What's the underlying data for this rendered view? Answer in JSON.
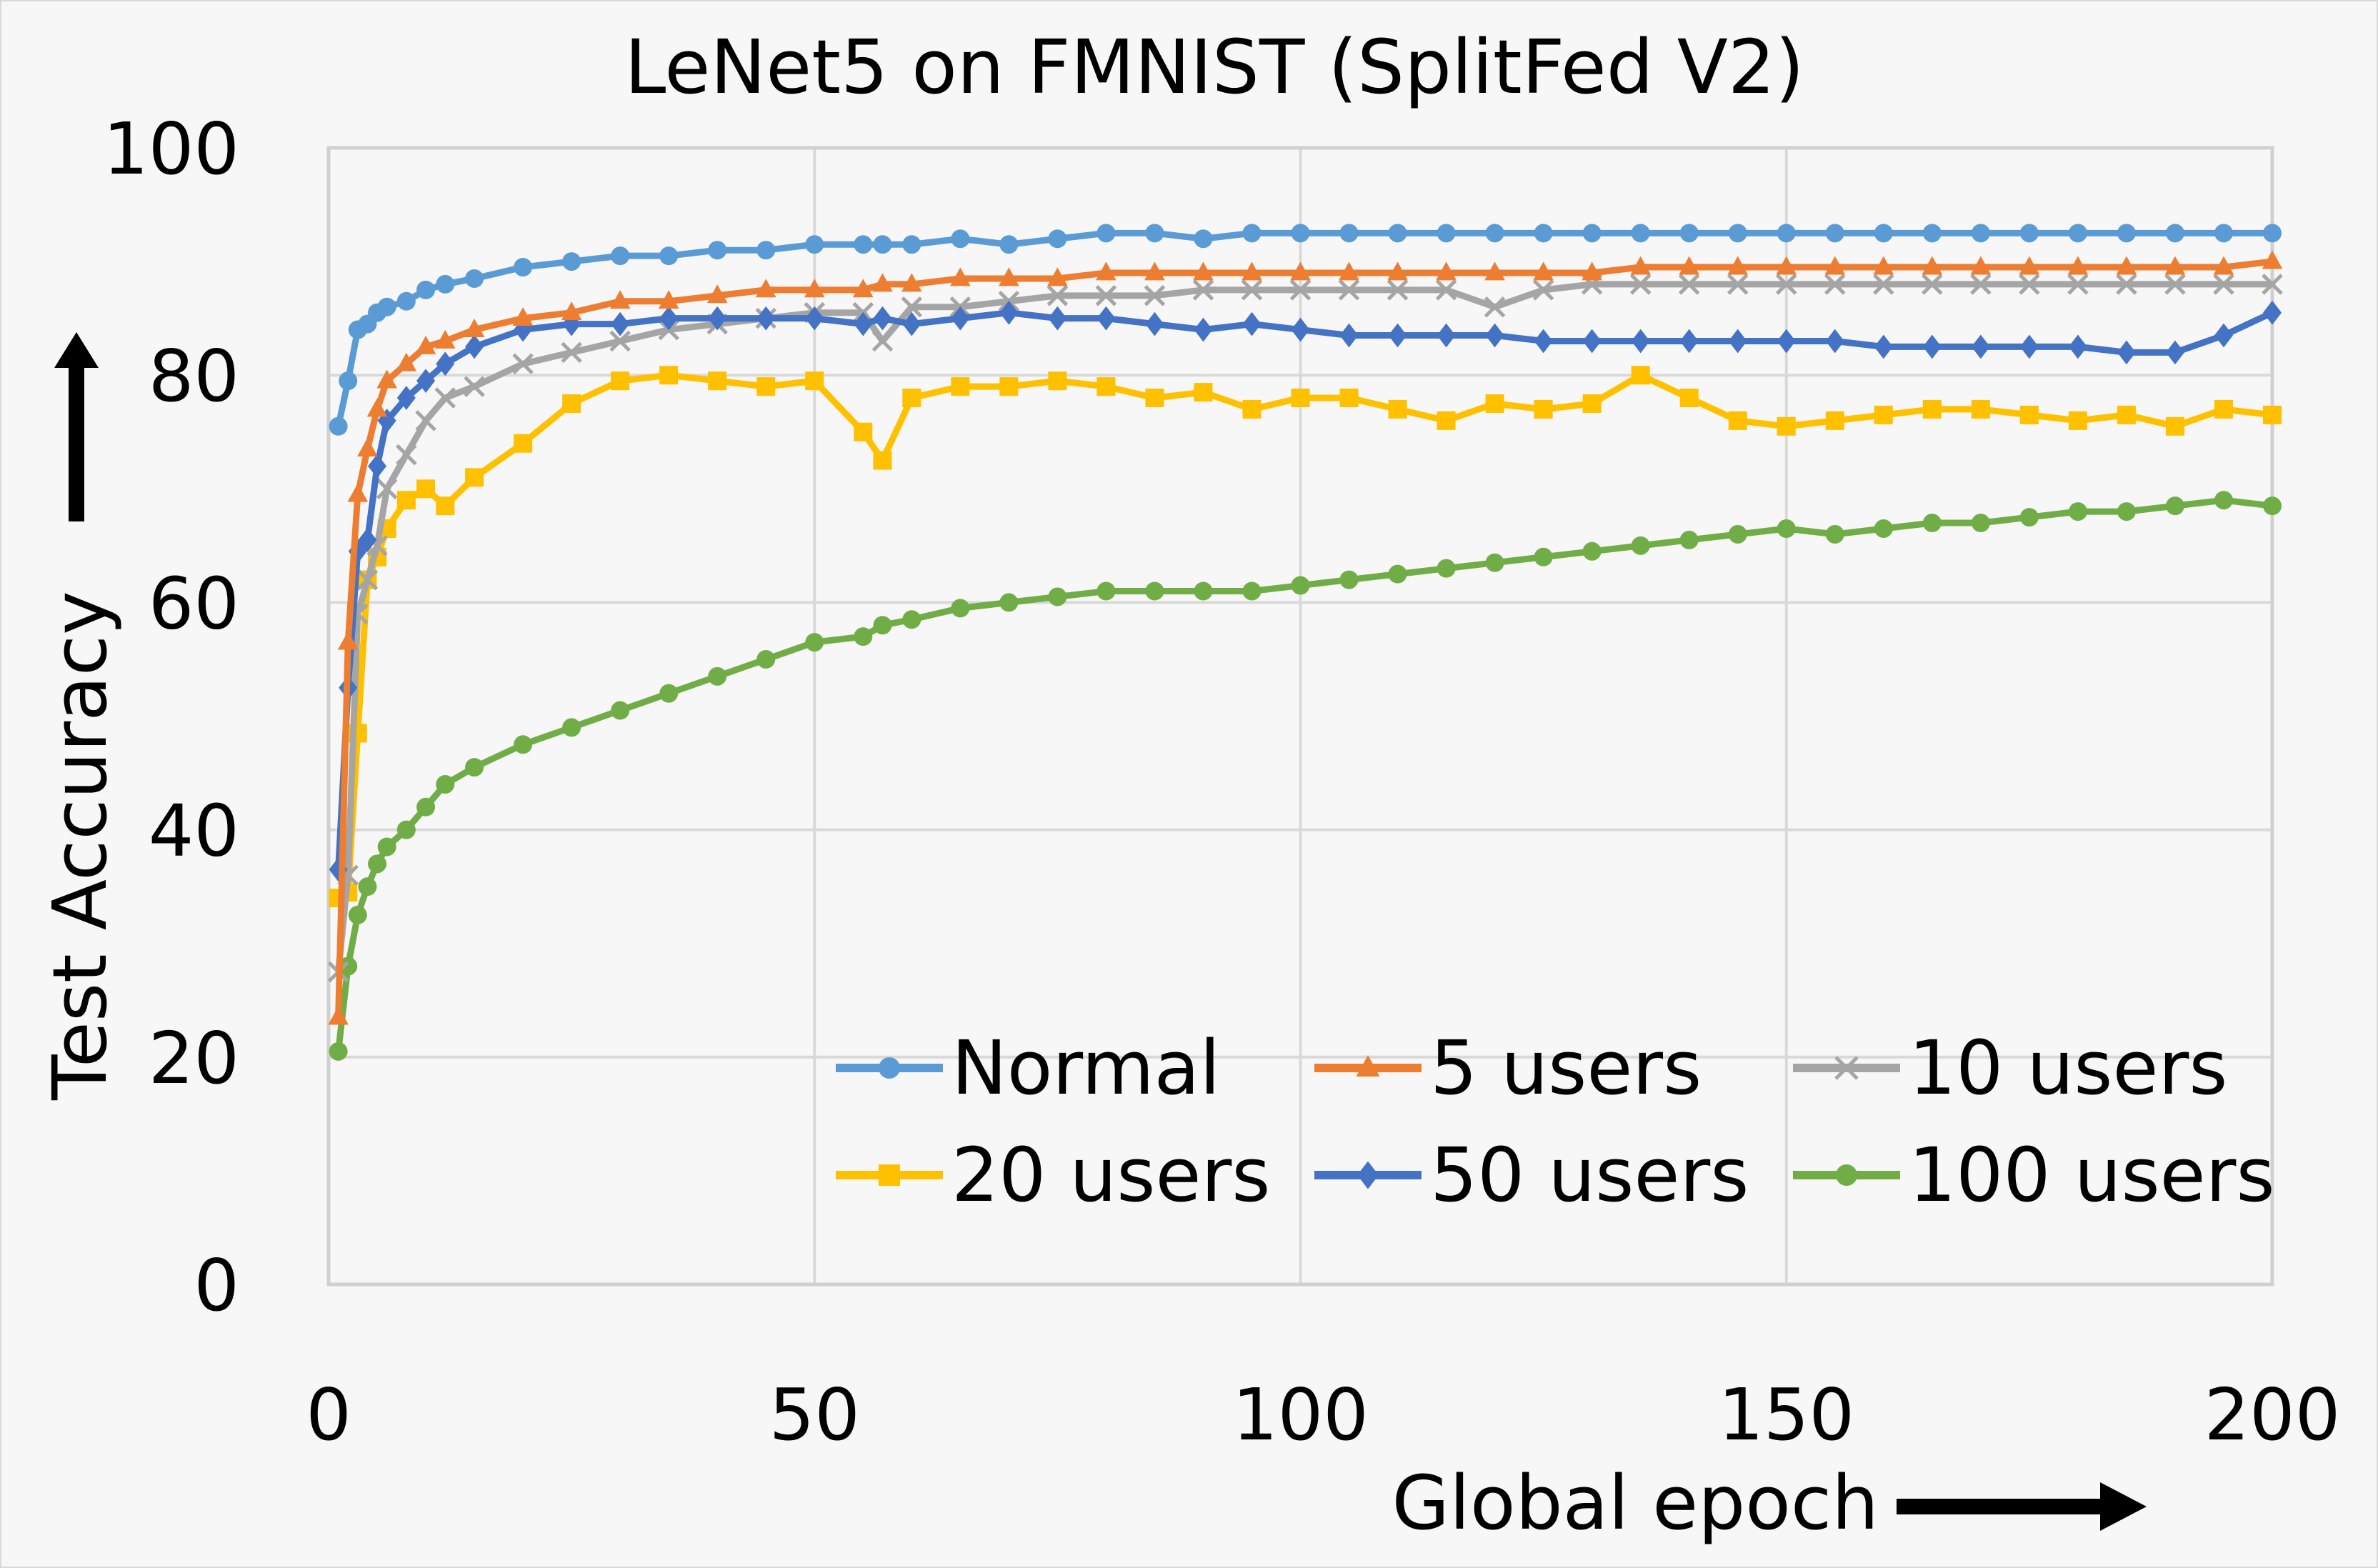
{
  "chart_data": {
    "type": "line",
    "title": "LeNet5 on FMNIST (SplitFed V2)",
    "xlabel": "Global epoch",
    "ylabel": "Test Accuracy",
    "xlim": [
      0,
      200
    ],
    "ylim": [
      0,
      100
    ],
    "xticks": [
      0,
      50,
      100,
      150,
      200
    ],
    "yticks": [
      0,
      20,
      40,
      60,
      80,
      100
    ],
    "grid": true,
    "legend_position": "bottom-right",
    "legend_columns": 3,
    "x": [
      1,
      2,
      3,
      4,
      5,
      6,
      8,
      10,
      12,
      15,
      20,
      25,
      30,
      35,
      40,
      45,
      50,
      55,
      57,
      60,
      65,
      70,
      75,
      80,
      85,
      90,
      95,
      100,
      105,
      110,
      115,
      120,
      125,
      130,
      135,
      140,
      145,
      150,
      155,
      160,
      165,
      170,
      175,
      180,
      185,
      190,
      195,
      200
    ],
    "series": [
      {
        "name": "Normal",
        "color": "#5b9bd5",
        "marker": "circle",
        "values": [
          75.5,
          79.5,
          84,
          84.5,
          85.5,
          86,
          86.5,
          87.5,
          88,
          88.5,
          89.5,
          90,
          90.5,
          90.5,
          91,
          91,
          91.5,
          91.5,
          91.5,
          91.5,
          92,
          91.5,
          92,
          92.5,
          92.5,
          92,
          92.5,
          92.5,
          92.5,
          92.5,
          92.5,
          92.5,
          92.5,
          92.5,
          92.5,
          92.5,
          92.5,
          92.5,
          92.5,
          92.5,
          92.5,
          92.5,
          92.5,
          92.5,
          92.5,
          92.5,
          92.5,
          92.5
        ]
      },
      {
        "name": "5 users",
        "color": "#ed7d31",
        "marker": "triangle",
        "values": [
          23.5,
          56.5,
          69.5,
          73.5,
          77,
          79.5,
          81,
          82.5,
          83,
          84,
          85,
          85.5,
          86.5,
          86.5,
          87,
          87.5,
          87.5,
          87.5,
          88,
          88,
          88.5,
          88.5,
          88.5,
          89,
          89,
          89,
          89,
          89,
          89,
          89,
          89,
          89,
          89,
          89,
          89.5,
          89.5,
          89.5,
          89.5,
          89.5,
          89.5,
          89.5,
          89.5,
          89.5,
          89.5,
          89.5,
          89.5,
          89.5,
          90
        ]
      },
      {
        "name": "10 users",
        "color": "#a5a5a5",
        "marker": "x",
        "values": [
          27.5,
          36,
          59,
          62,
          65,
          70,
          73,
          76,
          78,
          79,
          81,
          82,
          83,
          84,
          84.5,
          85,
          85.5,
          85.5,
          83,
          86,
          86,
          86.5,
          87,
          87,
          87,
          87.5,
          87.5,
          87.5,
          87.5,
          87.5,
          87.5,
          86,
          87.5,
          88,
          88,
          88,
          88,
          88,
          88,
          88,
          88,
          88,
          88,
          88,
          88,
          88,
          88,
          88
        ]
      },
      {
        "name": "20 users",
        "color": "#ffc000",
        "marker": "square",
        "values": [
          34,
          34.5,
          48.5,
          62,
          64,
          66.5,
          69,
          70,
          68.5,
          71,
          74,
          77.5,
          79.5,
          80,
          79.5,
          79,
          79.5,
          75,
          72.5,
          78,
          79,
          79,
          79.5,
          79,
          78,
          78.5,
          77,
          78,
          78,
          77,
          76,
          77.5,
          77,
          77.5,
          80,
          78,
          76,
          75.5,
          76,
          76.5,
          77,
          77,
          76.5,
          76,
          76.5,
          75.5,
          77,
          76.5
        ]
      },
      {
        "name": "50 users",
        "color": "#4472c4",
        "marker": "diamond",
        "values": [
          36.5,
          52.5,
          64.5,
          65.5,
          72,
          76,
          78,
          79.5,
          81,
          82.5,
          84,
          84.5,
          84.5,
          85,
          85,
          85,
          85,
          84.5,
          85,
          84.5,
          85,
          85.5,
          85,
          85,
          84.5,
          84,
          84.5,
          84,
          83.5,
          83.5,
          83.5,
          83.5,
          83,
          83,
          83,
          83,
          83,
          83,
          83,
          82.5,
          82.5,
          82.5,
          82.5,
          82.5,
          82,
          82,
          83.5,
          85.5
        ]
      },
      {
        "name": "100 users",
        "color": "#70ad47",
        "marker": "circle",
        "values": [
          20.5,
          28,
          32.5,
          35,
          37,
          38.5,
          40,
          42,
          44,
          45.5,
          47.5,
          49,
          50.5,
          52,
          53.5,
          55,
          56.5,
          57,
          58,
          58.5,
          59.5,
          60,
          60.5,
          61,
          61,
          61,
          61,
          61.5,
          62,
          62.5,
          63,
          63.5,
          64,
          64.5,
          65,
          65.5,
          66,
          66.5,
          66,
          66.5,
          67,
          67,
          67.5,
          68,
          68,
          68.5,
          69,
          68.5
        ]
      }
    ]
  },
  "axis_arrows": {
    "x": "arrow-right",
    "y": "arrow-up"
  }
}
